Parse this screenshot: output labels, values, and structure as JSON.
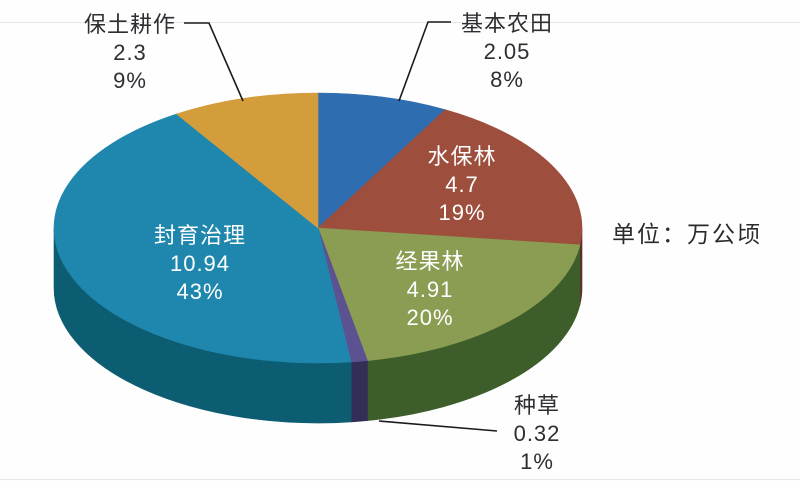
{
  "chart_data": {
    "type": "pie",
    "style": "3d",
    "unit_label": "单位：万公顷",
    "direction": "clockwise",
    "start_angle_deg": 0,
    "slices": [
      {
        "key": "jiben-nongtian",
        "label": "基本农田",
        "value": 2.05,
        "pct": 8,
        "value_str": "2.05",
        "pct_str": "8%",
        "color": "#2e6daf",
        "side_color": "#1d4671",
        "label_placement": "outside-top-right"
      },
      {
        "key": "shuibaolin",
        "label": "水保林",
        "value": 4.7,
        "pct": 19,
        "value_str": "4.7",
        "pct_str": "19%",
        "color": "#9d4e3c",
        "side_color": "#5e2d24",
        "label_placement": "inside"
      },
      {
        "key": "jingguolin",
        "label": "经果林",
        "value": 4.91,
        "pct": 20,
        "value_str": "4.91",
        "pct_str": "20%",
        "color": "#8a9d53",
        "side_color": "#3d5d2b",
        "label_placement": "inside"
      },
      {
        "key": "zhongcao",
        "label": "种草",
        "value": 0.32,
        "pct": 1,
        "value_str": "0.32",
        "pct_str": "1%",
        "color": "#5c5191",
        "side_color": "#332e58",
        "label_placement": "outside-bottom-right"
      },
      {
        "key": "fengyu-zhili",
        "label": "封育治理",
        "value": 10.94,
        "pct": 43,
        "value_str": "10.94",
        "pct_str": "43%",
        "color": "#1f87ad",
        "side_color": "#0d5d72",
        "label_placement": "inside"
      },
      {
        "key": "baotu-gengzuo",
        "label": "保土耕作",
        "value": 2.3,
        "pct": 9,
        "value_str": "2.3",
        "pct_str": "9%",
        "color": "#d49d3c",
        "side_color": "#8a6220",
        "label_placement": "outside-top-left"
      }
    ],
    "leader_line_color": "#1a1a1a",
    "background_color": "#fefefe"
  }
}
